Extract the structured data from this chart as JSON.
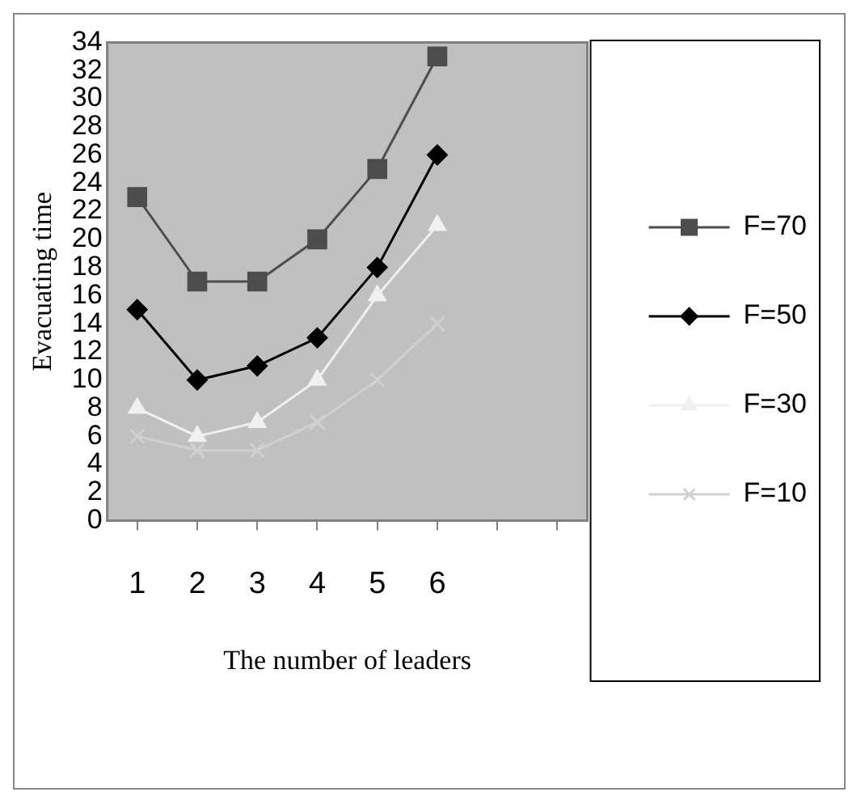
{
  "chart_data": {
    "type": "line",
    "xlabel": "The number of leaders",
    "ylabel": "Evacuating time",
    "categories": [
      "1",
      "2",
      "3",
      "4",
      "5",
      "6",
      null,
      null
    ],
    "series": [
      {
        "name": "F=70",
        "color": "#4d4d4d",
        "marker": "square",
        "values": [
          23,
          17,
          17,
          20,
          25,
          33,
          null,
          null
        ]
      },
      {
        "name": "F=50",
        "color": "#000000",
        "marker": "diamond",
        "values": [
          15,
          10,
          11,
          13,
          18,
          26,
          null,
          null
        ]
      },
      {
        "name": "F=30",
        "color": "#f0f0f0",
        "marker": "triangle",
        "values": [
          8,
          6,
          7,
          10,
          16,
          21,
          null,
          null
        ]
      },
      {
        "name": "F=10",
        "color": "#d0d0d0",
        "marker": "cross",
        "values": [
          6,
          5,
          5,
          7,
          10,
          14,
          null,
          null
        ]
      }
    ],
    "ylim": [
      0,
      34
    ],
    "yticks": [
      0,
      2,
      4,
      6,
      8,
      10,
      12,
      14,
      16,
      18,
      20,
      22,
      24,
      26,
      28,
      30,
      32,
      34
    ],
    "grid": false,
    "legend": "right"
  }
}
